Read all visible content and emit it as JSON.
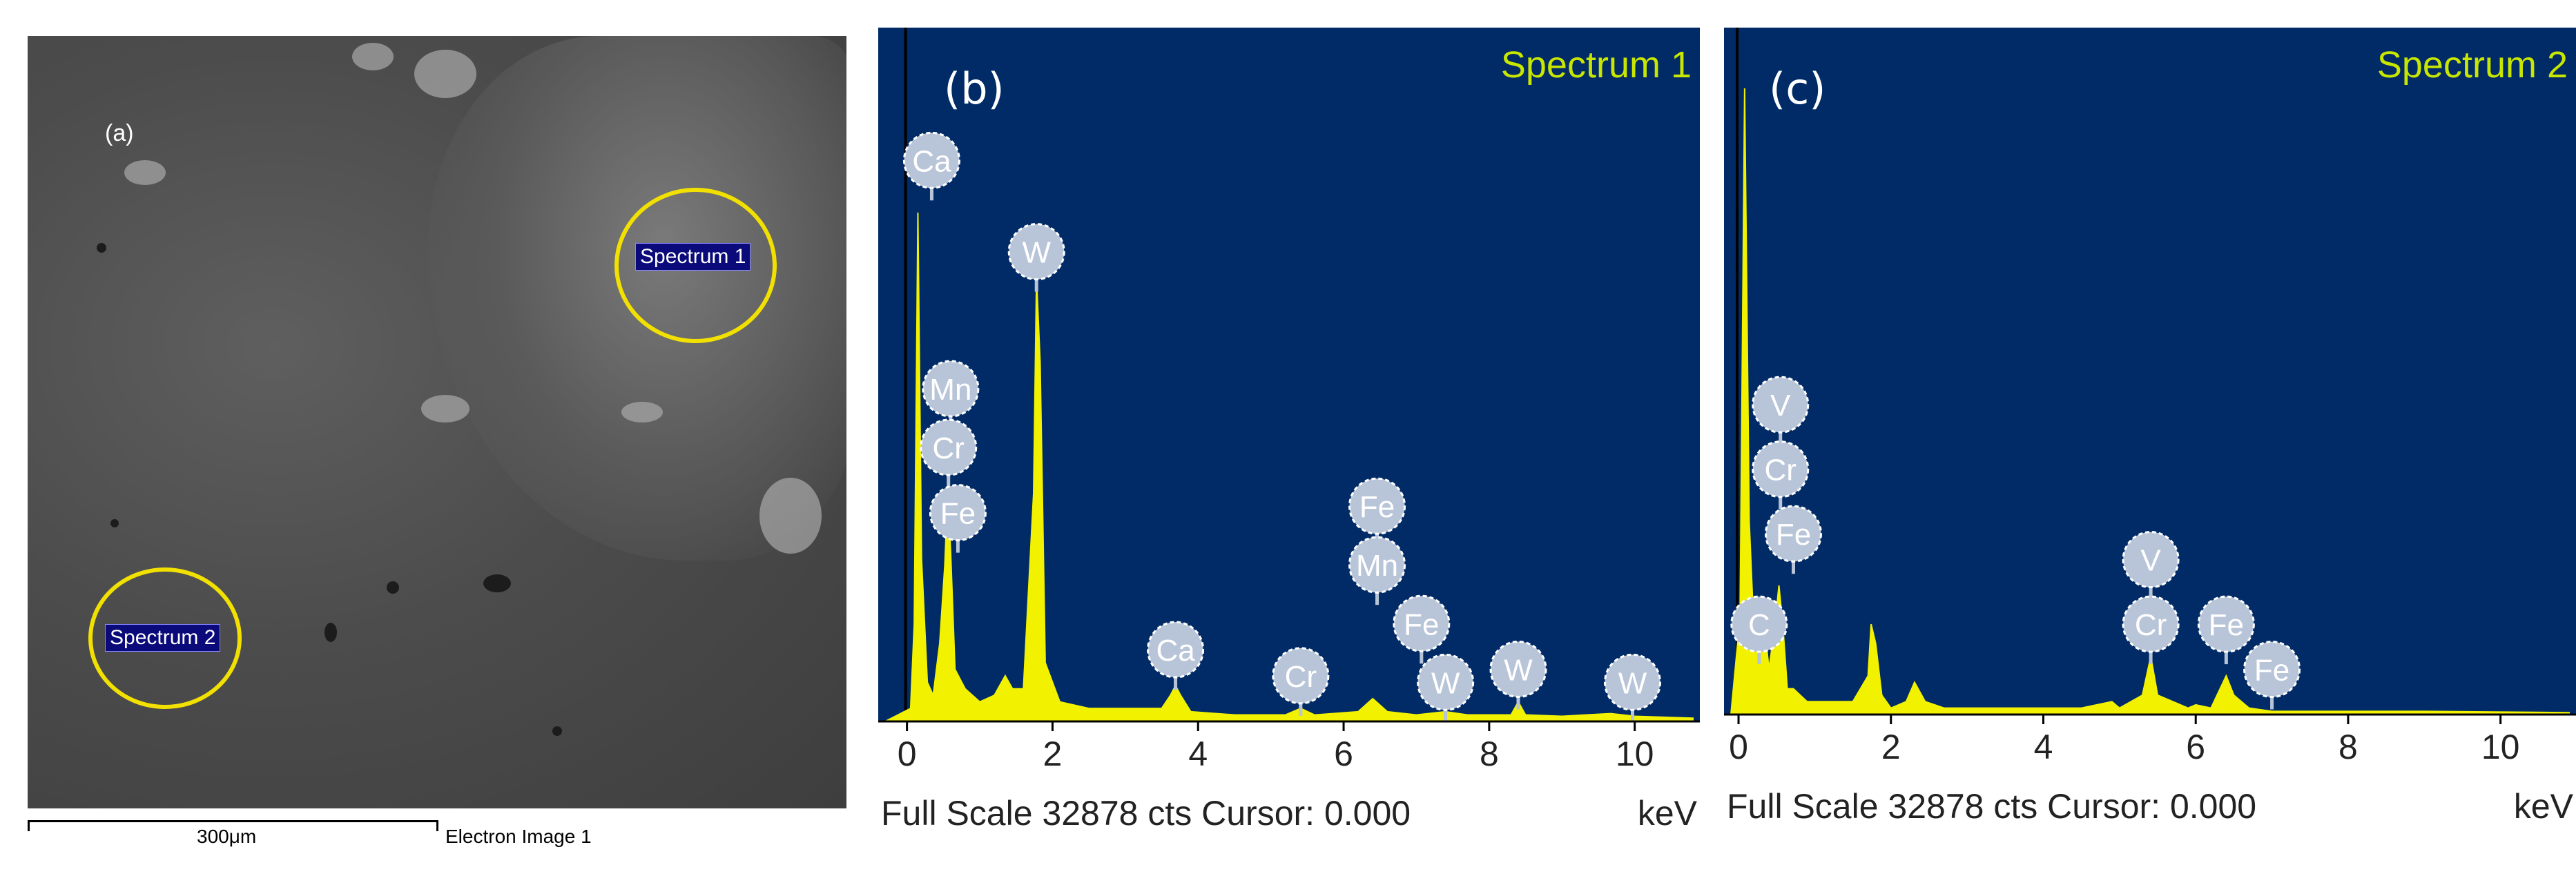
{
  "panel_a": {
    "label": "(a)",
    "spectrum_1_tag": "Spectrum 1",
    "spectrum_2_tag": "Spectrum 2",
    "scale_label": "300μm",
    "image_name": "Electron Image 1"
  },
  "colors": {
    "plot_bg": "#002b66",
    "trace": "#f2f200",
    "title": "#c8e600",
    "marker": "#b8c4d8"
  },
  "chart_data": [
    {
      "type": "line",
      "panel_label": "(b)",
      "title": "Spectrum 1",
      "xlabel": "keV",
      "xlim": [
        -0.3,
        10.8
      ],
      "ylim": [
        0,
        1
      ],
      "xticks": [
        0,
        2,
        4,
        6,
        8,
        10
      ],
      "footer": "Full Scale 32878 cts Cursor: 0.000",
      "series": [
        {
          "x": [
            -0.3,
            0.05,
            0.1,
            0.15,
            0.2,
            0.28,
            0.36,
            0.45,
            0.52,
            0.56,
            0.6,
            0.66,
            0.8,
            1.0,
            1.2,
            1.35,
            1.45,
            1.6,
            1.74,
            1.78,
            1.83,
            1.9,
            2.1,
            2.5,
            3.0,
            3.5,
            3.62,
            3.69,
            3.76,
            3.9,
            4.5,
            5.2,
            5.41,
            5.6,
            6.2,
            6.4,
            6.6,
            7.0,
            7.4,
            7.7,
            8.3,
            8.4,
            8.5,
            9.0,
            9.67,
            10.0,
            10.8
          ],
          "y": [
            0,
            0.02,
            0.15,
            0.78,
            0.25,
            0.06,
            0.04,
            0.12,
            0.24,
            0.35,
            0.26,
            0.08,
            0.05,
            0.03,
            0.04,
            0.07,
            0.05,
            0.05,
            0.35,
            0.68,
            0.55,
            0.09,
            0.03,
            0.02,
            0.02,
            0.02,
            0.04,
            0.055,
            0.04,
            0.015,
            0.01,
            0.01,
            0.02,
            0.01,
            0.015,
            0.035,
            0.015,
            0.01,
            0.015,
            0.01,
            0.01,
            0.03,
            0.01,
            0.008,
            0.012,
            0.008,
            0.005
          ]
        }
      ],
      "markers": [
        {
          "element": "Ca",
          "x": 0.34,
          "y": 0.86
        },
        {
          "element": "W",
          "x": 1.78,
          "y": 0.72
        },
        {
          "element": "Mn",
          "x": 0.6,
          "y": 0.51
        },
        {
          "element": "Cr",
          "x": 0.57,
          "y": 0.42
        },
        {
          "element": "Fe",
          "x": 0.7,
          "y": 0.32
        },
        {
          "element": "Fe",
          "x": 6.46,
          "y": 0.33
        },
        {
          "element": "Mn",
          "x": 6.46,
          "y": 0.24
        },
        {
          "element": "Fe",
          "x": 7.07,
          "y": 0.15
        },
        {
          "element": "W",
          "x": 7.4,
          "y": 0.06
        },
        {
          "element": "W",
          "x": 8.4,
          "y": 0.08
        },
        {
          "element": "W",
          "x": 9.97,
          "y": 0.06
        },
        {
          "element": "Ca",
          "x": 3.69,
          "y": 0.11
        },
        {
          "element": "Cr",
          "x": 5.41,
          "y": 0.07
        }
      ]
    },
    {
      "type": "line",
      "panel_label": "(c)",
      "title": "Spectrum 2",
      "xlabel": "keV",
      "xlim": [
        -0.1,
        10.9
      ],
      "ylim": [
        0,
        1
      ],
      "xticks": [
        0,
        2,
        4,
        6,
        8,
        10
      ],
      "footer": "Full Scale 32878 cts Cursor: 0.000",
      "series": [
        {
          "x": [
            -0.1,
            0.02,
            0.08,
            0.14,
            0.22,
            0.3,
            0.4,
            0.48,
            0.53,
            0.58,
            0.64,
            0.72,
            0.9,
            1.2,
            1.5,
            1.7,
            1.74,
            1.8,
            1.88,
            2.0,
            2.2,
            2.31,
            2.45,
            2.7,
            3.5,
            4.5,
            4.9,
            4.95,
            5.0,
            5.3,
            5.41,
            5.5,
            5.9,
            6.0,
            6.2,
            6.4,
            6.5,
            6.7,
            7.0,
            8.0,
            9.0,
            10.9
          ],
          "y": [
            0,
            0.15,
            0.97,
            0.3,
            0.08,
            0.18,
            0.07,
            0.14,
            0.2,
            0.14,
            0.04,
            0.04,
            0.02,
            0.02,
            0.02,
            0.06,
            0.14,
            0.11,
            0.03,
            0.01,
            0.02,
            0.05,
            0.02,
            0.01,
            0.01,
            0.01,
            0.02,
            0.015,
            0.01,
            0.03,
            0.09,
            0.03,
            0.01,
            0.015,
            0.01,
            0.06,
            0.03,
            0.01,
            0.005,
            0.005,
            0.005,
            0.003
          ]
        }
      ],
      "markers": [
        {
          "element": "V",
          "x": 0.55,
          "y": 0.48
        },
        {
          "element": "Cr",
          "x": 0.55,
          "y": 0.38
        },
        {
          "element": "Fe",
          "x": 0.72,
          "y": 0.28
        },
        {
          "element": "C",
          "x": 0.27,
          "y": 0.14
        },
        {
          "element": "V",
          "x": 5.41,
          "y": 0.24
        },
        {
          "element": "Cr",
          "x": 5.41,
          "y": 0.14
        },
        {
          "element": "Fe",
          "x": 6.4,
          "y": 0.14
        },
        {
          "element": "Fe",
          "x": 7.0,
          "y": 0.07
        }
      ]
    }
  ]
}
